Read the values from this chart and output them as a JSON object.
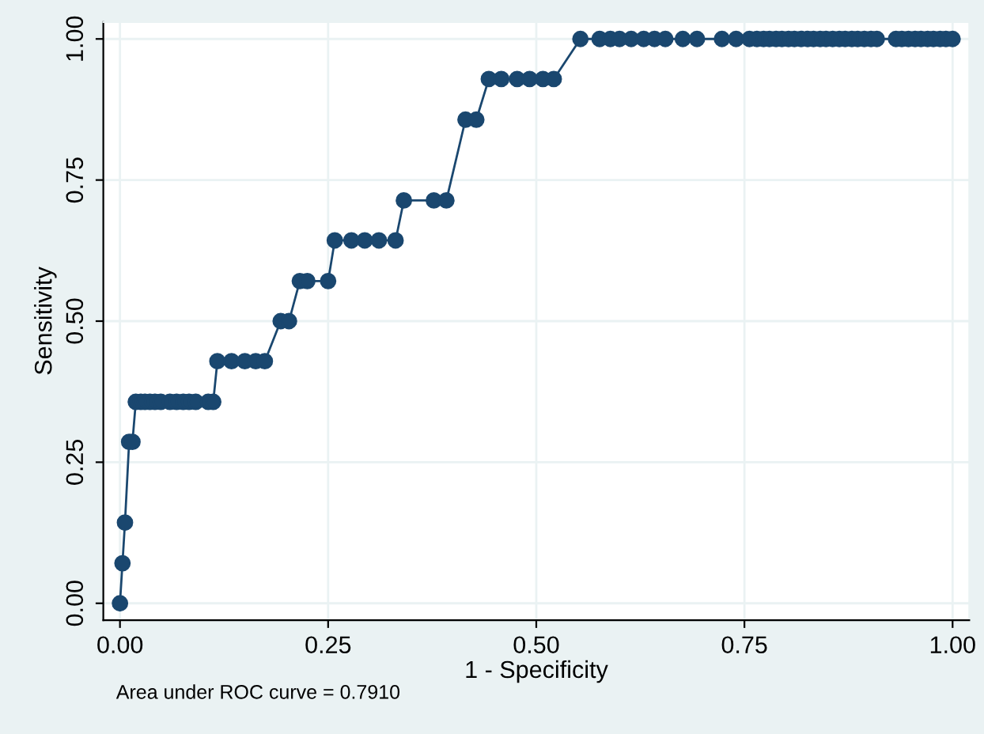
{
  "chart_data": {
    "type": "line",
    "xlabel": "1 - Specificity",
    "ylabel": "Sensitivity",
    "annotations": [
      "Area under ROC curve = 0.7910"
    ],
    "x": [
      0,
      0.003,
      0.006,
      0.011,
      0.015,
      0.019,
      0.025,
      0.03,
      0.036,
      0.042,
      0.049,
      0.06,
      0.068,
      0.076,
      0.083,
      0.091,
      0.106,
      0.112,
      0.117,
      0.134,
      0.15,
      0.163,
      0.174,
      0.193,
      0.203,
      0.216,
      0.225,
      0.25,
      0.258,
      0.278,
      0.294,
      0.311,
      0.331,
      0.341,
      0.377,
      0.392,
      0.415,
      0.428,
      0.443,
      0.458,
      0.477,
      0.492,
      0.508,
      0.521,
      0.553,
      0.576,
      0.589,
      0.6,
      0.614,
      0.629,
      0.642,
      0.655,
      0.676,
      0.693,
      0.723,
      0.74,
      0.756,
      0.765,
      0.773,
      0.78,
      0.788,
      0.795,
      0.803,
      0.81,
      0.818,
      0.826,
      0.833,
      0.841,
      0.848,
      0.856,
      0.864,
      0.871,
      0.879,
      0.886,
      0.894,
      0.902,
      0.909,
      0.932,
      0.939,
      0.947,
      0.955,
      0.962,
      0.97,
      0.977,
      0.985,
      0.992,
      1.0
    ],
    "series": [
      {
        "color": "#1a476f",
        "values": [
          0,
          0.071,
          0.143,
          0.286,
          0.286,
          0.357,
          0.357,
          0.357,
          0.357,
          0.357,
          0.357,
          0.357,
          0.357,
          0.357,
          0.357,
          0.357,
          0.357,
          0.357,
          0.429,
          0.429,
          0.429,
          0.429,
          0.429,
          0.5,
          0.5,
          0.571,
          0.571,
          0.571,
          0.643,
          0.643,
          0.643,
          0.643,
          0.643,
          0.714,
          0.714,
          0.714,
          0.857,
          0.857,
          0.929,
          0.929,
          0.929,
          0.929,
          0.929,
          0.929,
          1,
          1,
          1,
          1,
          1,
          1,
          1,
          1,
          1,
          1,
          1,
          1,
          1,
          1,
          1,
          1,
          1,
          1,
          1,
          1,
          1,
          1,
          1,
          1,
          1,
          1,
          1,
          1,
          1,
          1,
          1,
          1,
          1,
          1,
          1,
          1,
          1,
          1,
          1,
          1,
          1,
          1,
          1
        ]
      }
    ],
    "xlim": [
      -0.02,
      1.02
    ],
    "ylim": [
      -0.03,
      1.03
    ],
    "xticks": [
      {
        "value": 0,
        "label": "0.00"
      },
      {
        "value": 0.25,
        "label": "0.25"
      },
      {
        "value": 0.5,
        "label": "0.50"
      },
      {
        "value": 0.75,
        "label": "0.75"
      },
      {
        "value": 1,
        "label": "1.00"
      }
    ],
    "yticks": [
      {
        "value": 0,
        "label": "0.00"
      },
      {
        "value": 0.25,
        "label": "0.25"
      },
      {
        "value": 0.5,
        "label": "0.50"
      },
      {
        "value": 0.75,
        "label": "0.75"
      },
      {
        "value": 1,
        "label": "1.00"
      }
    ],
    "grid": true,
    "marker": "circle",
    "line_style": "solid"
  }
}
